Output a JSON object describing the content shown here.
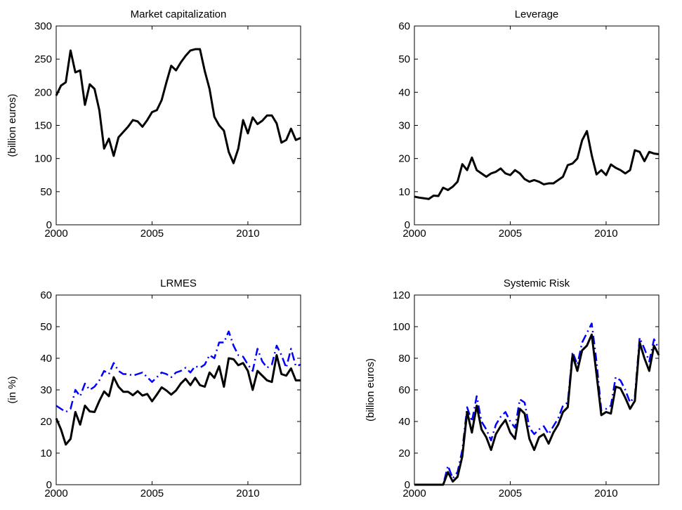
{
  "chart_data": [
    {
      "type": "line",
      "title": "Market capitalization",
      "ylabel": "(billion euros)",
      "x": [
        2000,
        2000.25,
        2000.5,
        2000.75,
        2001,
        2001.25,
        2001.5,
        2001.75,
        2002,
        2002.25,
        2002.5,
        2002.75,
        2003,
        2003.25,
        2003.5,
        2003.75,
        2004,
        2004.25,
        2004.5,
        2004.75,
        2005,
        2005.25,
        2005.5,
        2005.75,
        2006,
        2006.25,
        2006.5,
        2006.75,
        2007,
        2007.25,
        2007.5,
        2007.75,
        2008,
        2008.25,
        2008.5,
        2008.75,
        2009,
        2009.25,
        2009.5,
        2009.75,
        2010,
        2010.25,
        2010.5,
        2010.75,
        2011,
        2011.25,
        2011.5,
        2011.75,
        2012,
        2012.25,
        2012.5,
        2012.75
      ],
      "series": [
        {
          "color": "#000000",
          "style": "solid",
          "values": [
            195,
            210,
            215,
            263,
            230,
            233,
            181,
            212,
            205,
            173,
            115,
            130,
            104,
            132,
            140,
            148,
            158,
            156,
            148,
            158,
            170,
            173,
            188,
            215,
            240,
            233,
            245,
            255,
            263,
            265,
            265,
            232,
            205,
            163,
            150,
            142,
            110,
            93,
            115,
            158,
            138,
            162,
            152,
            157,
            165,
            165,
            153,
            124,
            128,
            145,
            128,
            131
          ]
        }
      ],
      "xlim": [
        2000,
        2012.75
      ],
      "xticks": [
        2000,
        2005,
        2010
      ],
      "ylim": [
        0,
        300
      ],
      "yticks": [
        0,
        50,
        100,
        150,
        200,
        250,
        300
      ]
    },
    {
      "type": "line",
      "title": "Leverage",
      "x": [
        2000,
        2000.25,
        2000.5,
        2000.75,
        2001,
        2001.25,
        2001.5,
        2001.75,
        2002,
        2002.25,
        2002.5,
        2002.75,
        2003,
        2003.25,
        2003.5,
        2003.75,
        2004,
        2004.25,
        2004.5,
        2004.75,
        2005,
        2005.25,
        2005.5,
        2005.75,
        2006,
        2006.25,
        2006.5,
        2006.75,
        2007,
        2007.25,
        2007.5,
        2007.75,
        2008,
        2008.25,
        2008.5,
        2008.75,
        2009,
        2009.25,
        2009.5,
        2009.75,
        2010,
        2010.25,
        2010.5,
        2010.75,
        2011,
        2011.25,
        2011.5,
        2011.75,
        2012,
        2012.25,
        2012.5,
        2012.75
      ],
      "series": [
        {
          "color": "#000000",
          "style": "solid",
          "values": [
            8.5,
            8.2,
            8,
            7.8,
            8.8,
            8.7,
            11.2,
            10.5,
            11.5,
            13,
            18.3,
            16.5,
            20.3,
            16.5,
            15.5,
            14.5,
            15.5,
            16,
            17,
            15.5,
            15,
            16.5,
            15.5,
            13.8,
            13,
            13.5,
            13,
            12.2,
            12.5,
            12.5,
            13.5,
            14.5,
            18,
            18.5,
            20,
            25.5,
            28.3,
            21,
            15.2,
            16.5,
            15,
            18.2,
            17.2,
            16.5,
            15.5,
            16.5,
            22.5,
            22,
            19.2,
            22,
            21.5,
            21.3
          ]
        }
      ],
      "xlim": [
        2000,
        2012.75
      ],
      "xticks": [
        2000,
        2005,
        2010
      ],
      "ylim": [
        0,
        60
      ],
      "yticks": [
        0,
        10,
        20,
        30,
        40,
        50,
        60
      ]
    },
    {
      "type": "line",
      "title": "LRMES",
      "ylabel": "(in %)",
      "x": [
        2000,
        2000.25,
        2000.5,
        2000.75,
        2001,
        2001.25,
        2001.5,
        2001.75,
        2002,
        2002.25,
        2002.5,
        2002.75,
        2003,
        2003.25,
        2003.5,
        2003.75,
        2004,
        2004.25,
        2004.5,
        2004.75,
        2005,
        2005.25,
        2005.5,
        2005.75,
        2006,
        2006.25,
        2006.5,
        2006.75,
        2007,
        2007.25,
        2007.5,
        2007.75,
        2008,
        2008.25,
        2008.5,
        2008.75,
        2009,
        2009.25,
        2009.5,
        2009.75,
        2010,
        2010.25,
        2010.5,
        2010.75,
        2011,
        2011.25,
        2011.5,
        2011.75,
        2012,
        2012.25,
        2012.5,
        2012.75
      ],
      "series": [
        {
          "color": "#0000ff",
          "style": "dash-dot",
          "values": [
            25,
            24,
            23,
            24,
            30,
            28,
            32,
            30,
            31,
            33,
            36,
            35,
            38.5,
            36,
            35,
            35,
            34.5,
            35,
            35.5,
            34,
            32.5,
            34,
            35.5,
            35,
            34,
            35.5,
            36,
            37,
            35.5,
            37.5,
            37,
            38,
            41,
            40,
            45,
            45,
            48.5,
            44,
            41,
            40.5,
            38,
            36,
            43,
            39,
            37,
            38,
            44,
            41,
            37,
            43,
            37.5,
            38
          ]
        },
        {
          "color": "#000000",
          "style": "solid",
          "values": [
            21,
            17.5,
            12.7,
            14.5,
            23,
            19,
            25,
            23.2,
            23,
            26.5,
            29.5,
            28,
            34,
            31,
            29.4,
            29.4,
            28.3,
            29.6,
            28.2,
            28.7,
            26.4,
            28.5,
            30.8,
            29.8,
            28.5,
            29.8,
            32,
            33.5,
            31.5,
            33.8,
            31.5,
            31,
            35.5,
            33.8,
            37.5,
            31,
            40,
            39.7,
            37.8,
            38.5,
            36,
            30,
            36,
            34.5,
            33,
            32.5,
            41,
            35,
            34.5,
            36.8,
            33,
            33
          ]
        }
      ],
      "xlim": [
        2000,
        2012.75
      ],
      "xticks": [
        2000,
        2005,
        2010
      ],
      "ylim": [
        0,
        60
      ],
      "yticks": [
        0,
        10,
        20,
        30,
        40,
        50,
        60
      ]
    },
    {
      "type": "line",
      "title": "Systemic Risk",
      "ylabel": "(billion euros)",
      "x": [
        2000,
        2000.25,
        2000.5,
        2000.75,
        2001,
        2001.25,
        2001.5,
        2001.75,
        2002,
        2002.25,
        2002.5,
        2002.75,
        2003,
        2003.25,
        2003.5,
        2003.75,
        2004,
        2004.25,
        2004.5,
        2004.75,
        2005,
        2005.25,
        2005.5,
        2005.75,
        2006,
        2006.25,
        2006.5,
        2006.75,
        2007,
        2007.25,
        2007.5,
        2007.75,
        2008,
        2008.25,
        2008.5,
        2008.75,
        2009,
        2009.25,
        2009.5,
        2009.75,
        2010,
        2010.25,
        2010.5,
        2010.75,
        2011,
        2011.25,
        2011.5,
        2011.75,
        2012,
        2012.25,
        2012.5,
        2012.75
      ],
      "series": [
        {
          "color": "#0000ff",
          "style": "dash-dot",
          "values": [
            0,
            0,
            0,
            0,
            0,
            0,
            0,
            12,
            4,
            8,
            22,
            49,
            40,
            56,
            40,
            35,
            28,
            38,
            43,
            46,
            40,
            36,
            54,
            52,
            36,
            32,
            35,
            37,
            32,
            37,
            42,
            50,
            52,
            84,
            76,
            90,
            96,
            102,
            78,
            47,
            48,
            50,
            68,
            66,
            60,
            52,
            56,
            93,
            86,
            78,
            92,
            86
          ]
        },
        {
          "color": "#000000",
          "style": "solid",
          "values": [
            0,
            0,
            0,
            0,
            0,
            0,
            0,
            8,
            2,
            5,
            18,
            46,
            33,
            50,
            35,
            30,
            22,
            32,
            37,
            41,
            33,
            29,
            48,
            45,
            29,
            22,
            30,
            32,
            26,
            33,
            38,
            46,
            49,
            82,
            72,
            85,
            88,
            95,
            70,
            44,
            46,
            45,
            62,
            61,
            55,
            48,
            53,
            90,
            80,
            72,
            88,
            82
          ]
        }
      ],
      "xlim": [
        2000,
        2012.75
      ],
      "xticks": [
        2000,
        2005,
        2010
      ],
      "ylim": [
        0,
        120
      ],
      "yticks": [
        0,
        20,
        40,
        60,
        80,
        100,
        120
      ]
    }
  ]
}
